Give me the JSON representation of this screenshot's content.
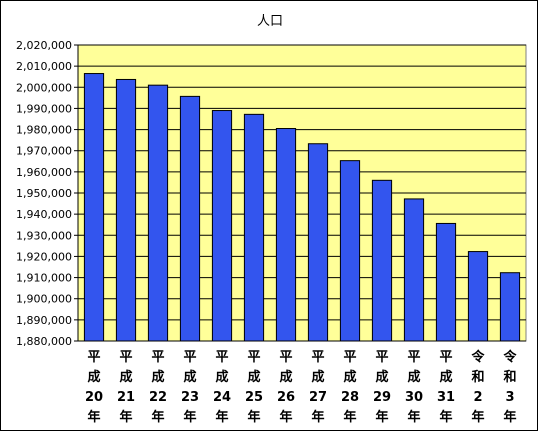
{
  "chart_data": {
    "type": "bar",
    "title": "人口",
    "xlabel": "",
    "ylabel": "",
    "ylim": [
      1880000,
      2020000
    ],
    "ytick_step": 10000,
    "yticks": [
      "1,880,000",
      "1,890,000",
      "1,900,000",
      "1,910,000",
      "1,920,000",
      "1,930,000",
      "1,940,000",
      "1,950,000",
      "1,960,000",
      "1,970,000",
      "1,980,000",
      "1,990,000",
      "2,000,000",
      "2,010,000",
      "2,020,000"
    ],
    "categories": [
      [
        "平",
        "成",
        "20",
        "年"
      ],
      [
        "平",
        "成",
        "21",
        "年"
      ],
      [
        "平",
        "成",
        "22",
        "年"
      ],
      [
        "平",
        "成",
        "23",
        "年"
      ],
      [
        "平",
        "成",
        "24",
        "年"
      ],
      [
        "平",
        "成",
        "25",
        "年"
      ],
      [
        "平",
        "成",
        "26",
        "年"
      ],
      [
        "平",
        "成",
        "27",
        "年"
      ],
      [
        "平",
        "成",
        "28",
        "年"
      ],
      [
        "平",
        "成",
        "29",
        "年"
      ],
      [
        "平",
        "成",
        "30",
        "年"
      ],
      [
        "平",
        "成",
        "31",
        "年"
      ],
      [
        "令",
        "和",
        "2",
        "年"
      ],
      [
        "令",
        "和",
        "3",
        "年"
      ]
    ],
    "values": [
      2006500,
      2003700,
      2001000,
      1995700,
      1989000,
      1987200,
      1980500,
      1973300,
      1965300,
      1956000,
      1947200,
      1935600,
      1922300,
      1912300
    ],
    "grid": true,
    "legend": "none",
    "colors": {
      "bar_fill": "#3355ee",
      "bar_stroke": "#000000",
      "plot_bg": "#ffff99",
      "grid": "#000000"
    }
  }
}
